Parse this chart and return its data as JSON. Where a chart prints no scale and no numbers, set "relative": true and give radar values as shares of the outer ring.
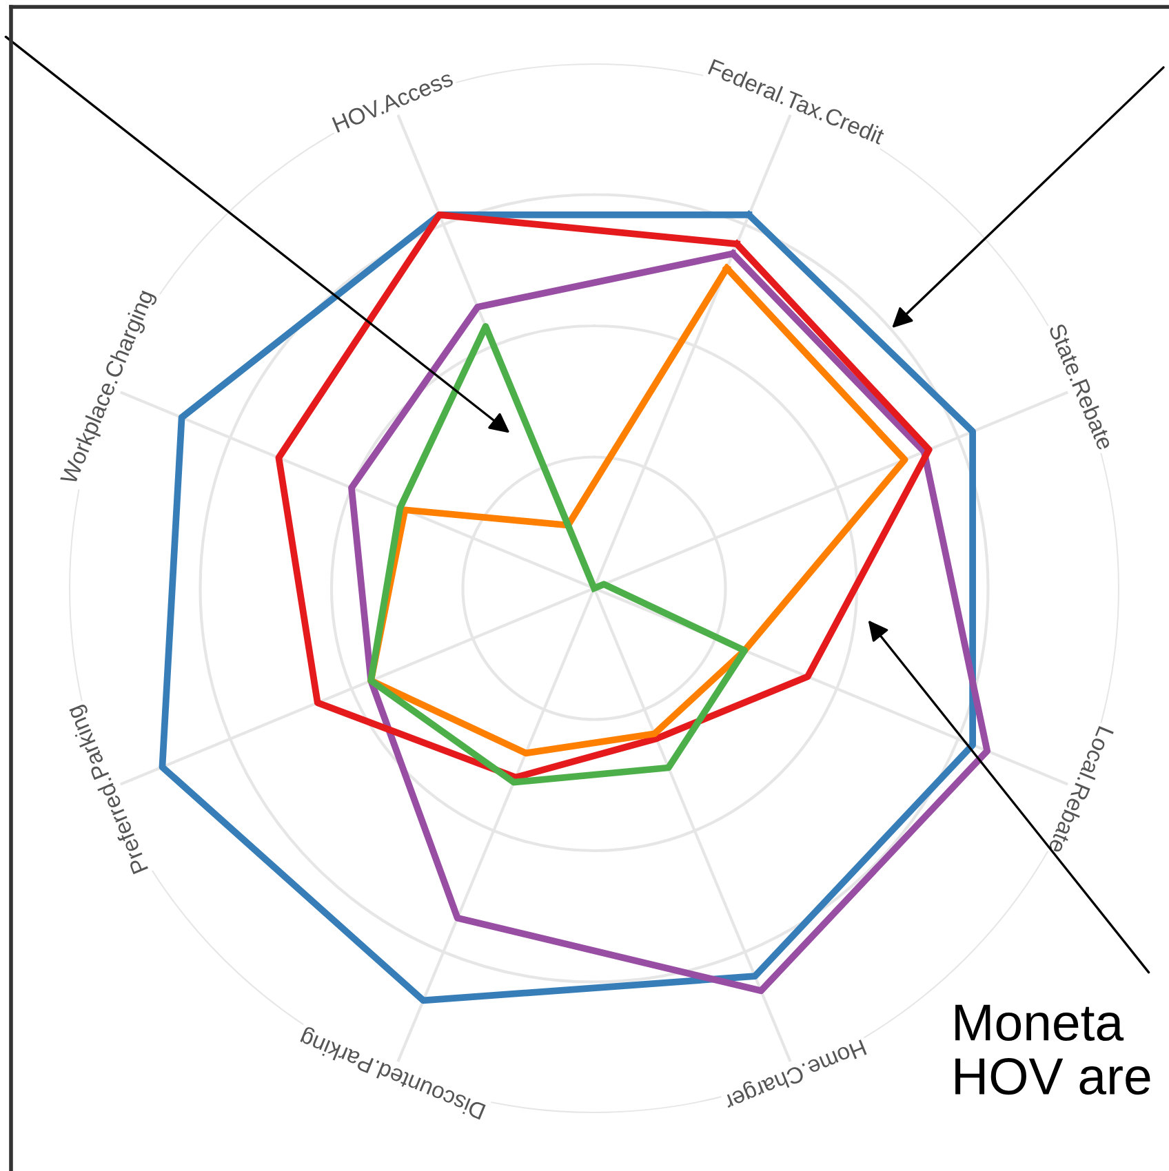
{
  "chart_data": {
    "type": "radar",
    "relative": true,
    "grid": true,
    "categories": [
      "Federal.Tax.Credit",
      "State.Rebate",
      "Local.Rebate",
      "Home.Charger",
      "Discounted.Parking",
      "Preferred.Parking",
      "Workplace.Charging",
      "HOV.Access"
    ],
    "series": [
      {
        "color": "#377eb8",
        "values": [
          0.77,
          0.78,
          0.78,
          0.8,
          0.85,
          0.89,
          0.85,
          0.77
        ]
      },
      {
        "color": "#984ea3",
        "values": [
          0.69,
          0.68,
          0.81,
          0.83,
          0.68,
          0.46,
          0.5,
          0.58
        ]
      },
      {
        "color": "#e41a1c",
        "values": [
          0.71,
          0.69,
          0.44,
          0.31,
          0.39,
          0.57,
          0.65,
          0.77
        ]
      },
      {
        "color": "#ff7f00",
        "values": [
          0.66,
          0.64,
          0.31,
          0.3,
          0.34,
          0.46,
          0.39,
          0.13
        ]
      },
      {
        "color": "#4daf4a",
        "values": [
          0.0,
          0.02,
          0.31,
          0.37,
          0.4,
          0.46,
          0.4,
          0.54
        ]
      }
    ],
    "annotations": [
      "Moneta\nHOV are"
    ]
  }
}
